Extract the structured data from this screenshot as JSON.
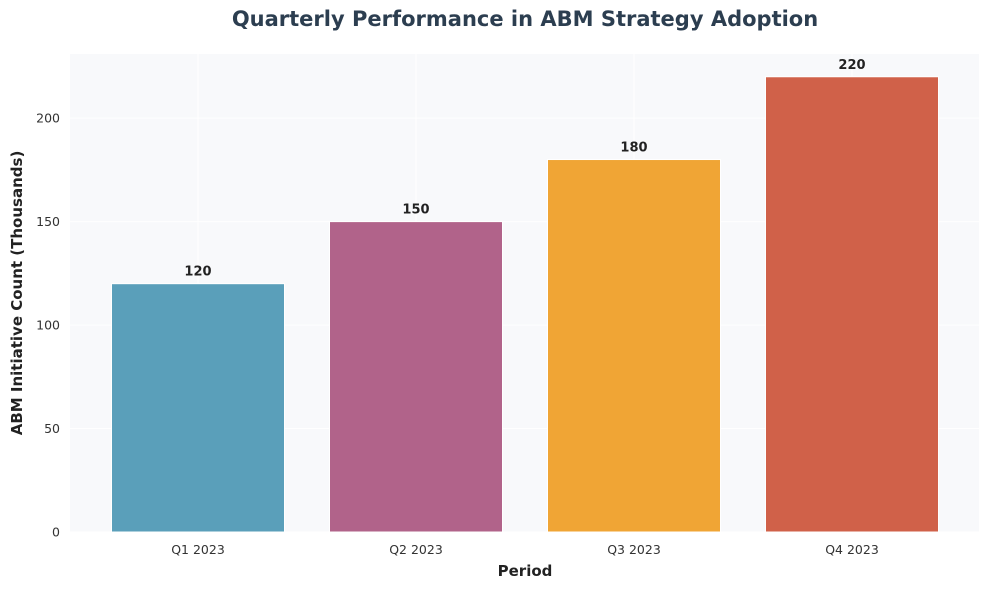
{
  "chart_data": {
    "type": "bar",
    "title": "Quarterly Performance in ABM Strategy Adoption",
    "xlabel": "Period",
    "ylabel": "ABM Initiative Count (Thousands)",
    "categories": [
      "Q1 2023",
      "Q2 2023",
      "Q3 2023",
      "Q4 2023"
    ],
    "values": [
      120,
      150,
      180,
      220
    ],
    "data_labels": [
      "120",
      "150",
      "180",
      "220"
    ],
    "colors": [
      "#5a9fba",
      "#b1638a",
      "#f0a535",
      "#d06149"
    ],
    "ylim": [
      0,
      231
    ],
    "yticks": [
      0,
      50,
      100,
      150,
      200
    ],
    "ytick_labels": [
      "0",
      "50",
      "100",
      "150",
      "200"
    ],
    "grid": true,
    "plot_background": "#f8f9fb",
    "grid_color": "#ffffff"
  }
}
